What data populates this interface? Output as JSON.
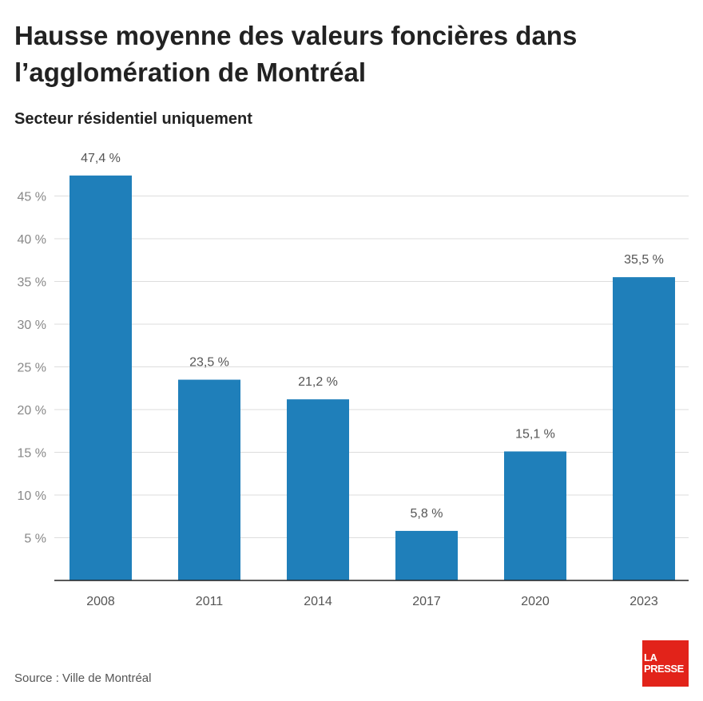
{
  "header": {
    "title": "Hausse moyenne des valeurs foncières dans l’agglomération de Montréal",
    "subtitle": "Secteur résidentiel uniquement"
  },
  "footer": {
    "source": "Source : Ville de Montréal",
    "logo_line1": "LA",
    "logo_line2": "PRESSE"
  },
  "colors": {
    "bar": "#1f7fba",
    "grid": "#dddddd",
    "axis": "#222222",
    "tick_text": "#888888",
    "label_text": "#555555",
    "logo": "#e2231a"
  },
  "chart_data": {
    "type": "bar",
    "title": "Hausse moyenne des valeurs foncières dans l’agglomération de Montréal",
    "subtitle": "Secteur résidentiel uniquement",
    "categories": [
      "2008",
      "2011",
      "2014",
      "2017",
      "2020",
      "2023"
    ],
    "values": [
      47.4,
      23.5,
      21.2,
      5.8,
      15.1,
      35.5
    ],
    "data_labels": [
      "47,4 %",
      "23,5 %",
      "21,2 %",
      "5,8 %",
      "15,1 %",
      "35,5 %"
    ],
    "yticks": [
      5,
      10,
      15,
      20,
      25,
      30,
      35,
      40,
      45
    ],
    "ytick_labels": [
      "5 %",
      "10 %",
      "15 %",
      "20 %",
      "25 %",
      "30 %",
      "35 %",
      "40 %",
      "45 %"
    ],
    "ylim": [
      0,
      50
    ],
    "grid": true,
    "legend": "none"
  }
}
